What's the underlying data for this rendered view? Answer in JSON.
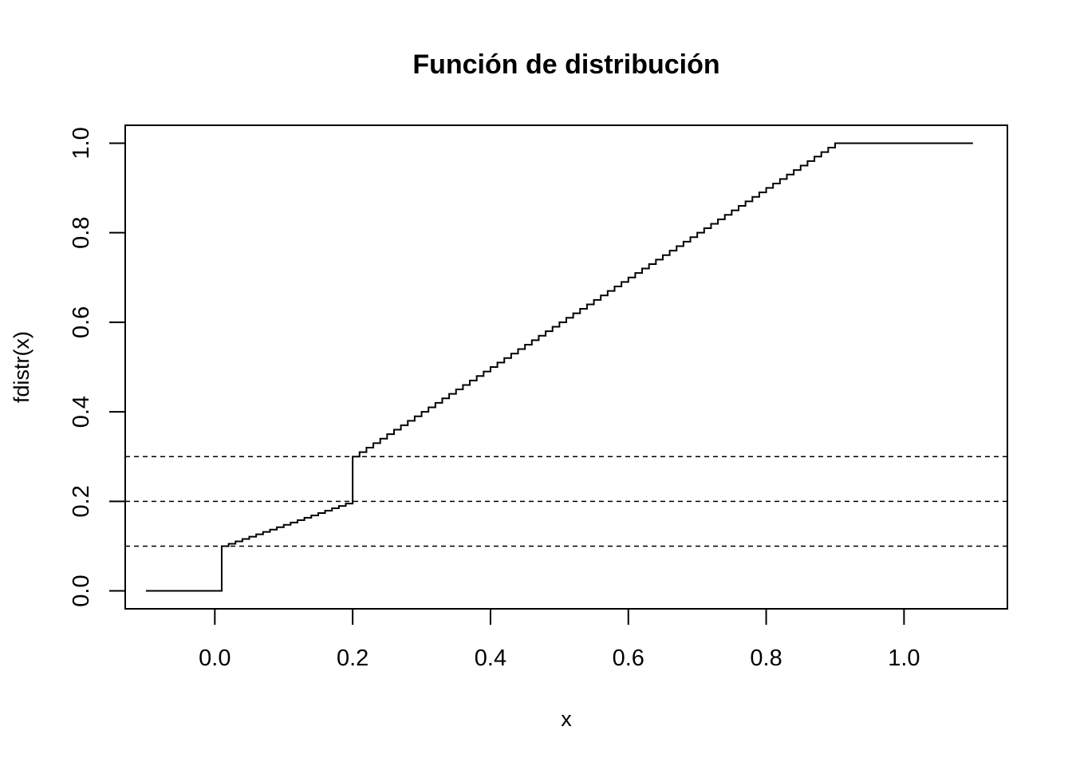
{
  "chart_data": {
    "type": "line",
    "title": "Función de distribución",
    "xlabel": "x",
    "ylabel": "fdistr(x)",
    "xlim": [
      -0.13,
      1.15
    ],
    "ylim": [
      -0.04,
      1.04
    ],
    "x_ticks": [
      0.0,
      0.2,
      0.4,
      0.6,
      0.8,
      1.0
    ],
    "x_tick_labels": [
      "0.0",
      "0.2",
      "0.4",
      "0.6",
      "0.8",
      "1.0"
    ],
    "y_ticks": [
      0.0,
      0.2,
      0.4,
      0.6,
      0.8,
      1.0
    ],
    "y_tick_labels": [
      "0.0",
      "0.2",
      "0.4",
      "0.6",
      "0.8",
      "1.0"
    ],
    "grid": false,
    "legend": "none",
    "step_function": {
      "x_min": -0.1,
      "x_max": 1.1,
      "description_of_values": [
        {
          "x_from": -0.1,
          "x_to": 0.01,
          "y": 0.0
        },
        {
          "x_from": 0.01,
          "x_to": 0.2,
          "y_from": 0.1,
          "y_to": 0.195,
          "steps": 19
        },
        {
          "x_from": 0.2,
          "x_to": 0.91,
          "y_from": 0.3,
          "y_to": 1.0,
          "steps": 71
        },
        {
          "x_from": 0.91,
          "x_to": 1.1,
          "y": 1.0
        }
      ]
    },
    "reference_lines": [
      {
        "y": 0.1,
        "style": "dashed"
      },
      {
        "y": 0.2,
        "style": "dashed"
      },
      {
        "y": 0.3,
        "style": "dashed"
      }
    ],
    "colors": {
      "line": "#000000",
      "background": "#ffffff"
    }
  }
}
